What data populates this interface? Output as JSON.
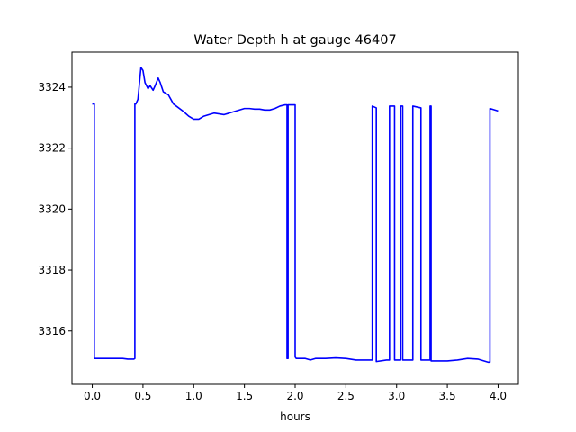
{
  "chart_data": {
    "type": "line",
    "title": "Water Depth h at gauge 46407",
    "xlabel": "hours",
    "ylabel": "",
    "xlim": [
      -0.2,
      4.2
    ],
    "ylim": [
      3314.25,
      3325.15
    ],
    "xticks": [
      0.0,
      0.5,
      1.0,
      1.5,
      2.0,
      2.5,
      3.0,
      3.5,
      4.0
    ],
    "xtick_labels": [
      "0.0",
      "0.5",
      "1.0",
      "1.5",
      "2.0",
      "2.5",
      "3.0",
      "3.5",
      "4.0"
    ],
    "yticks": [
      3316,
      3318,
      3320,
      3322,
      3324
    ],
    "ytick_labels": [
      "3316",
      "3318",
      "3320",
      "3322",
      "3324"
    ],
    "grid": false,
    "series": [
      {
        "color": "#0000ff",
        "x": [
          0.0,
          0.02,
          0.02,
          0.1,
          0.2,
          0.3,
          0.35,
          0.41,
          0.42,
          0.42,
          0.43,
          0.45,
          0.47,
          0.48,
          0.5,
          0.52,
          0.55,
          0.57,
          0.6,
          0.62,
          0.65,
          0.67,
          0.7,
          0.75,
          0.8,
          0.9,
          0.95,
          1.0,
          1.05,
          1.1,
          1.2,
          1.3,
          1.4,
          1.5,
          1.55,
          1.6,
          1.65,
          1.7,
          1.75,
          1.8,
          1.85,
          1.9,
          1.92,
          1.92,
          1.93,
          1.93,
          1.95,
          2.0,
          2.0,
          2.01,
          2.1,
          2.15,
          2.2,
          2.3,
          2.4,
          2.5,
          2.6,
          2.7,
          2.76,
          2.76,
          2.8,
          2.8,
          2.9,
          2.93,
          2.93,
          2.98,
          2.98,
          3.03,
          3.04,
          3.04,
          3.06,
          3.06,
          3.15,
          3.16,
          3.16,
          3.24,
          3.24,
          3.3,
          3.33,
          3.33,
          3.34,
          3.34,
          3.4,
          3.5,
          3.6,
          3.7,
          3.8,
          3.9,
          3.92,
          3.92,
          4.0
        ],
        "y": [
          3323.45,
          3323.45,
          3315.1,
          3315.1,
          3315.1,
          3315.1,
          3315.08,
          3315.08,
          3315.1,
          3323.45,
          3323.45,
          3323.6,
          3324.3,
          3324.65,
          3324.55,
          3324.15,
          3323.95,
          3324.05,
          3323.9,
          3324.05,
          3324.3,
          3324.15,
          3323.85,
          3323.75,
          3323.45,
          3323.2,
          3323.05,
          3322.95,
          3322.95,
          3323.05,
          3323.15,
          3323.1,
          3323.2,
          3323.3,
          3323.3,
          3323.28,
          3323.28,
          3323.25,
          3323.25,
          3323.3,
          3323.38,
          3323.42,
          3323.42,
          3315.1,
          3315.1,
          3323.42,
          3323.42,
          3323.42,
          3315.15,
          3315.1,
          3315.1,
          3315.05,
          3315.1,
          3315.1,
          3315.12,
          3315.1,
          3315.05,
          3315.05,
          3315.05,
          3323.38,
          3323.32,
          3315.0,
          3315.05,
          3315.05,
          3323.38,
          3323.38,
          3315.05,
          3315.05,
          3315.05,
          3323.38,
          3323.38,
          3315.05,
          3315.05,
          3315.05,
          3323.38,
          3323.32,
          3315.05,
          3315.05,
          3315.05,
          3323.38,
          3323.38,
          3315.02,
          3315.02,
          3315.02,
          3315.05,
          3315.1,
          3315.08,
          3314.98,
          3314.98,
          3323.3,
          3323.22
        ]
      }
    ]
  }
}
